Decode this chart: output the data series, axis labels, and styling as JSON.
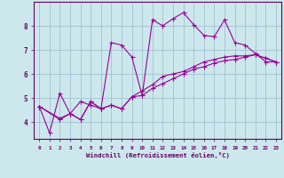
{
  "xlabel": "Windchill (Refroidissement éolien,°C)",
  "bg_color": "#cce8ec",
  "line_color": "#990099",
  "grid_color": "#99bbcc",
  "xlim": [
    -0.5,
    23.5
  ],
  "ylim": [
    3.3,
    9.0
  ],
  "xticks": [
    0,
    1,
    2,
    3,
    4,
    5,
    6,
    7,
    8,
    9,
    10,
    11,
    12,
    13,
    14,
    15,
    16,
    17,
    18,
    19,
    20,
    21,
    22,
    23
  ],
  "yticks": [
    4,
    5,
    6,
    7,
    8
  ],
  "line1_x": [
    0,
    1,
    2,
    3,
    4,
    5,
    6,
    7,
    8,
    9,
    10,
    11,
    12,
    13,
    14,
    15,
    16,
    17,
    18,
    19,
    20,
    21,
    22,
    23
  ],
  "line1_y": [
    4.65,
    3.55,
    5.2,
    4.35,
    4.85,
    4.7,
    4.55,
    7.3,
    7.2,
    6.7,
    5.1,
    8.25,
    8.0,
    8.3,
    8.55,
    8.05,
    7.6,
    7.55,
    8.25,
    7.3,
    7.2,
    6.85,
    6.5,
    6.5
  ],
  "line2_x": [
    0,
    2,
    3,
    4,
    5,
    6,
    7,
    8,
    9,
    10,
    11,
    12,
    13,
    14,
    15,
    16,
    17,
    18,
    19,
    20,
    21,
    22,
    23
  ],
  "line2_y": [
    4.65,
    4.15,
    4.35,
    4.1,
    4.85,
    4.55,
    4.7,
    4.55,
    5.05,
    5.1,
    5.4,
    5.6,
    5.8,
    6.0,
    6.2,
    6.3,
    6.45,
    6.55,
    6.6,
    6.7,
    6.8,
    6.65,
    6.5
  ],
  "line3_x": [
    0,
    2,
    3,
    4,
    5,
    6,
    7,
    8,
    9,
    10,
    11,
    12,
    13,
    14,
    15,
    16,
    17,
    18,
    19,
    20,
    21,
    22,
    23
  ],
  "line3_y": [
    4.65,
    4.1,
    4.35,
    4.1,
    4.85,
    4.55,
    4.7,
    4.55,
    5.05,
    5.3,
    5.55,
    5.9,
    6.0,
    6.1,
    6.3,
    6.5,
    6.6,
    6.7,
    6.75,
    6.75,
    6.8,
    6.65,
    6.5
  ],
  "figsize": [
    3.2,
    2.0
  ],
  "dpi": 100
}
